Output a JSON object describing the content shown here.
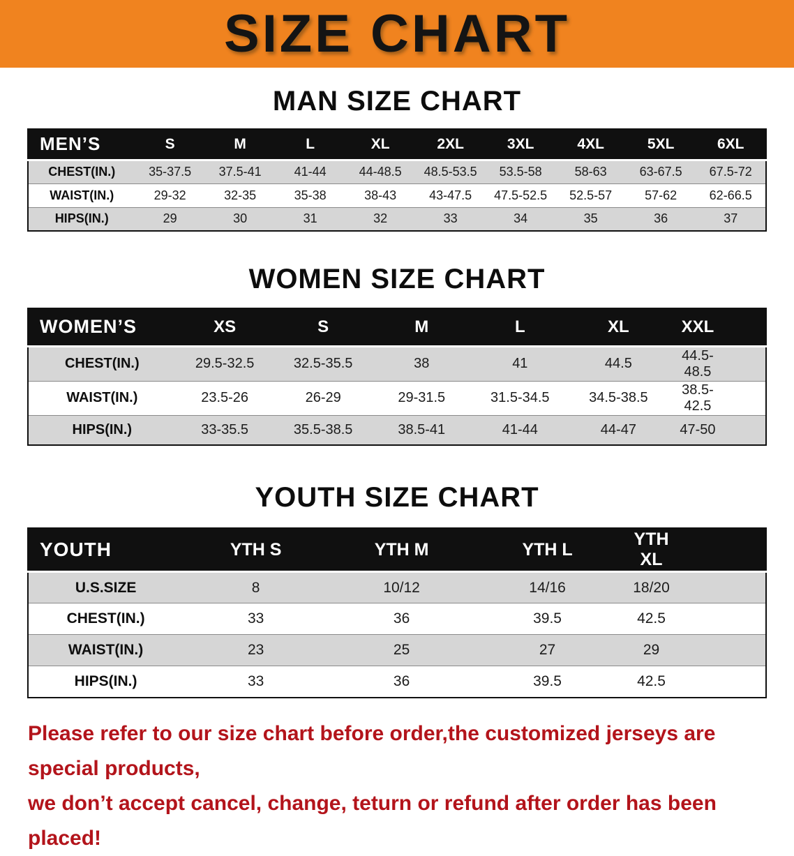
{
  "banner": {
    "title": "SIZE CHART"
  },
  "colors": {
    "banner_bg": "#f0831f",
    "table_header_bg": "#101010",
    "row_stripe": "#d6d6d6",
    "note_text": "#b3141b"
  },
  "men": {
    "title": "MAN SIZE CHART",
    "header": [
      "MEN’S",
      "S",
      "M",
      "L",
      "XL",
      "2XL",
      "3XL",
      "4XL",
      "5XL",
      "6XL"
    ],
    "rows": [
      {
        "label": "CHEST(IN.)",
        "values": [
          "35-37.5",
          "37.5-41",
          "41-44",
          "44-48.5",
          "48.5-53.5",
          "53.5-58",
          "58-63",
          "63-67.5",
          "67.5-72"
        ]
      },
      {
        "label": "WAIST(IN.)",
        "values": [
          "29-32",
          "32-35",
          "35-38",
          "38-43",
          "43-47.5",
          "47.5-52.5",
          "52.5-57",
          "57-62",
          "62-66.5"
        ]
      },
      {
        "label": "HIPS(IN.)",
        "values": [
          "29",
          "30",
          "31",
          "32",
          "33",
          "34",
          "35",
          "36",
          "37"
        ]
      }
    ]
  },
  "women": {
    "title": "WOMEN SIZE CHART",
    "header": [
      "WOMEN’S",
      "XS",
      "S",
      "M",
      "L",
      "XL",
      "XXL"
    ],
    "rows": [
      {
        "label": "CHEST(IN.)",
        "values": [
          "29.5-32.5",
          "32.5-35.5",
          "38",
          "41",
          "44.5",
          "44.5-48.5"
        ]
      },
      {
        "label": "WAIST(IN.)",
        "values": [
          "23.5-26",
          "26-29",
          "29-31.5",
          "31.5-34.5",
          "34.5-38.5",
          "38.5-42.5"
        ]
      },
      {
        "label": "HIPS(IN.)",
        "values": [
          "33-35.5",
          "35.5-38.5",
          "38.5-41",
          "41-44",
          "44-47",
          "47-50"
        ]
      }
    ]
  },
  "youth": {
    "title": "YOUTH SIZE CHART",
    "header": [
      "YOUTH",
      "YTH S",
      "YTH M",
      "YTH L",
      "YTH XL"
    ],
    "rows": [
      {
        "label": "U.S.SIZE",
        "values": [
          "8",
          "10/12",
          "14/16",
          "18/20"
        ]
      },
      {
        "label": "CHEST(IN.)",
        "values": [
          "33",
          "36",
          "39.5",
          "42.5"
        ]
      },
      {
        "label": "WAIST(IN.)",
        "values": [
          "23",
          "25",
          "27",
          "29"
        ]
      },
      {
        "label": "HIPS(IN.)",
        "values": [
          "33",
          "36",
          "39.5",
          "42.5"
        ]
      }
    ]
  },
  "footer": {
    "line1": "Please refer to our size chart before order,the customized jerseys are special products,",
    "line2": "we don’t accept cancel, change, teturn or refund after order has been placed!"
  }
}
